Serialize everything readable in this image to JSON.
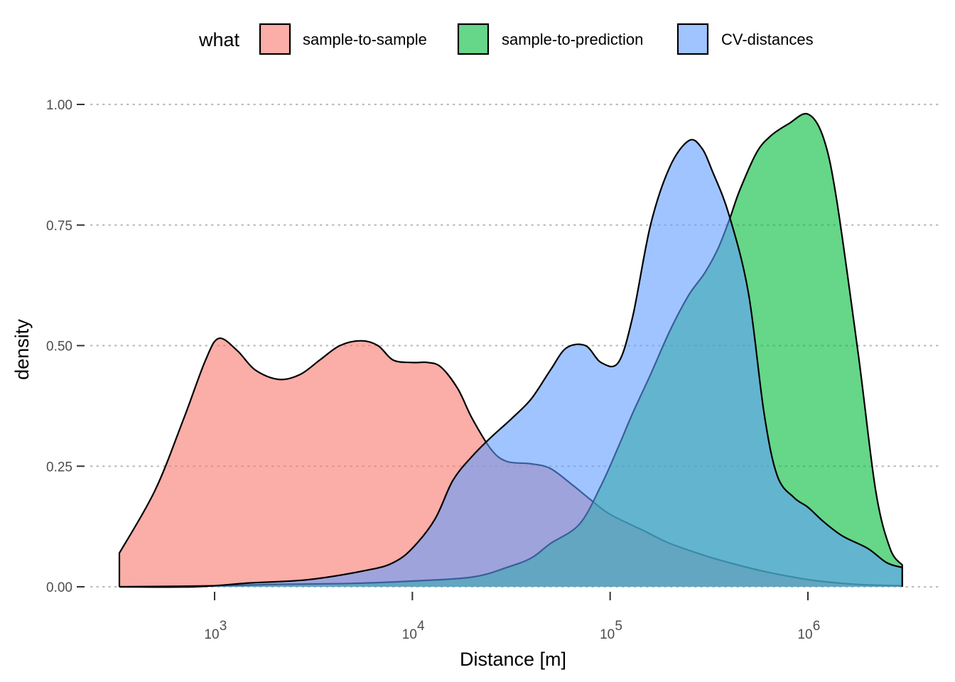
{
  "chart_data": {
    "type": "area",
    "subtype": "density",
    "xlabel": "Distance [m]",
    "ylabel": "density",
    "x_scale": "log10",
    "x_tick_values": [
      1000,
      10000,
      100000,
      1000000
    ],
    "x_tick_labels": [
      {
        "base": "10",
        "exp": "3"
      },
      {
        "base": "10",
        "exp": "4"
      },
      {
        "base": "10",
        "exp": "5"
      },
      {
        "base": "10",
        "exp": "6"
      }
    ],
    "y_ticks": [
      "0.00",
      "0.25",
      "0.50",
      "0.75",
      "1.00"
    ],
    "y_tick_values": [
      0,
      0.25,
      0.5,
      0.75,
      1.0
    ],
    "ylim": [
      0,
      1.0
    ],
    "xlim": [
      330,
      3000000
    ],
    "grid": "horizontal dotted",
    "legend": {
      "title": "what",
      "position": "top",
      "entries": [
        "sample-to-sample",
        "sample-to-prediction",
        "CV-distances"
      ]
    },
    "series": [
      {
        "name": "sample-to-sample",
        "color": "#F8766D",
        "x": [
          330,
          500,
          700,
          900,
          1050,
          1300,
          1600,
          2100,
          2700,
          3400,
          4300,
          5500,
          6700,
          8000,
          10000,
          12000,
          14000,
          17000,
          20000,
          25000,
          30000,
          40000,
          50000,
          65000,
          80000,
          100000,
          150000,
          200000,
          300000,
          400000,
          600000,
          1000000,
          1500000,
          2000000,
          3000000
        ],
        "y": [
          0.07,
          0.2,
          0.35,
          0.47,
          0.515,
          0.49,
          0.45,
          0.43,
          0.44,
          0.47,
          0.5,
          0.51,
          0.5,
          0.47,
          0.465,
          0.465,
          0.455,
          0.41,
          0.35,
          0.285,
          0.26,
          0.255,
          0.245,
          0.21,
          0.18,
          0.15,
          0.115,
          0.09,
          0.065,
          0.05,
          0.032,
          0.015,
          0.007,
          0.004,
          0.002
        ]
      },
      {
        "name": "sample-to-prediction",
        "color": "#00BA38",
        "x": [
          330,
          1000,
          2000,
          5000,
          10000,
          20000,
          30000,
          40000,
          50000,
          70000,
          90000,
          110000,
          130000,
          160000,
          200000,
          250000,
          300000,
          350000,
          400000,
          450000,
          550000,
          650000,
          800000,
          1000000,
          1200000,
          1400000,
          1800000,
          2200000,
          2600000,
          3000000
        ],
        "y": [
          0,
          0.002,
          0.005,
          0.007,
          0.012,
          0.02,
          0.04,
          0.06,
          0.09,
          0.13,
          0.21,
          0.29,
          0.36,
          0.44,
          0.53,
          0.605,
          0.65,
          0.7,
          0.76,
          0.82,
          0.9,
          0.935,
          0.96,
          0.98,
          0.93,
          0.8,
          0.48,
          0.2,
          0.08,
          0.045
        ]
      },
      {
        "name": "CV-distances",
        "color": "#619CFF",
        "x": [
          330,
          800,
          1500,
          3000,
          6000,
          8000,
          10000,
          13000,
          16000,
          20000,
          25000,
          32000,
          40000,
          50000,
          60000,
          75000,
          90000,
          110000,
          130000,
          160000,
          200000,
          250000,
          290000,
          330000,
          400000,
          500000,
          600000,
          700000,
          850000,
          1000000,
          1200000,
          1500000,
          2000000,
          2500000,
          3000000
        ],
        "y": [
          0,
          0,
          0.008,
          0.015,
          0.035,
          0.05,
          0.08,
          0.14,
          0.22,
          0.27,
          0.31,
          0.35,
          0.39,
          0.45,
          0.495,
          0.5,
          0.465,
          0.465,
          0.56,
          0.75,
          0.87,
          0.925,
          0.91,
          0.86,
          0.77,
          0.61,
          0.36,
          0.23,
          0.185,
          0.165,
          0.135,
          0.105,
          0.08,
          0.05,
          0.04
        ]
      }
    ]
  }
}
